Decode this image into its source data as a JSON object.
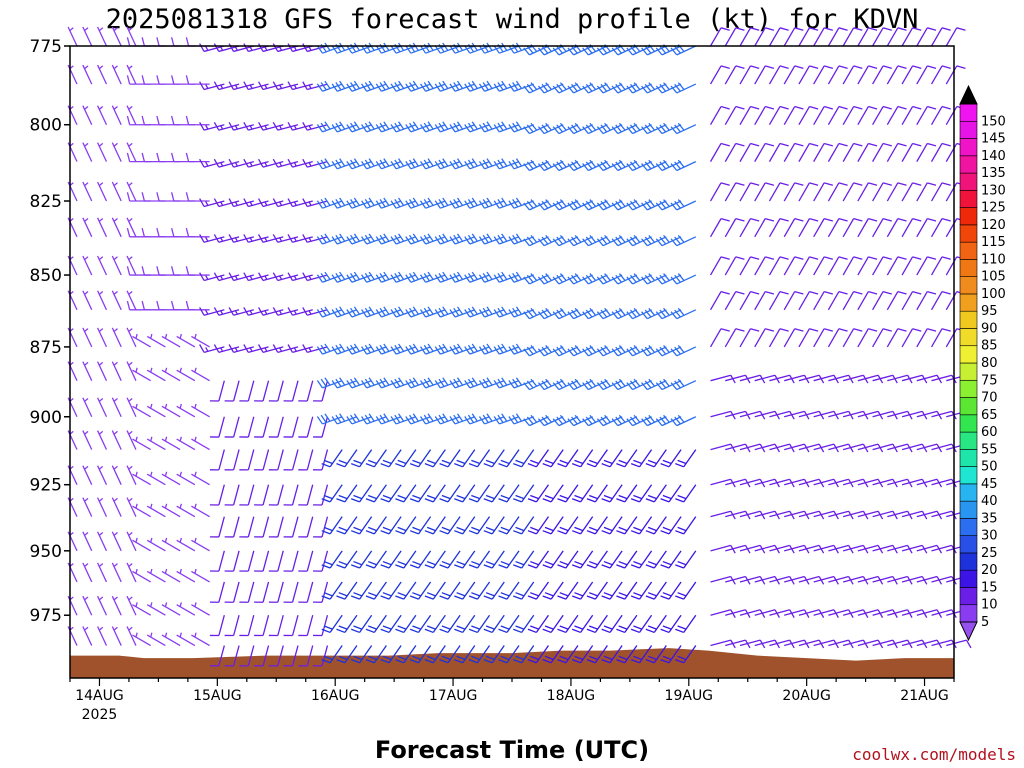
{
  "chart_data": {
    "type": "wind_barb_time_height",
    "title": "2025081318 GFS forecast wind profile (kt) for KDVN",
    "xlabel": "Forecast Time (UTC)",
    "ylabel": "",
    "x_ticks": [
      {
        "label": "14AUG",
        "sublabel": "2025",
        "hour": 6
      },
      {
        "label": "15AUG",
        "sublabel": "",
        "hour": 30
      },
      {
        "label": "16AUG",
        "sublabel": "",
        "hour": 54
      },
      {
        "label": "17AUG",
        "sublabel": "",
        "hour": 78
      },
      {
        "label": "18AUG",
        "sublabel": "",
        "hour": 102
      },
      {
        "label": "19AUG",
        "sublabel": "",
        "hour": 126
      },
      {
        "label": "20AUG",
        "sublabel": "",
        "hour": 150
      },
      {
        "label": "21AUG",
        "sublabel": "",
        "hour": 174
      }
    ],
    "x_range_hours": [
      0,
      180
    ],
    "y_ticks": [
      775,
      800,
      825,
      850,
      875,
      900,
      925,
      950,
      975
    ],
    "y_range_hpa": [
      775,
      1000
    ],
    "y_scale": "log",
    "levels_hpa": [
      775,
      787,
      800,
      812,
      825,
      837,
      850,
      862,
      875,
      887,
      900,
      912,
      925,
      937,
      950,
      962,
      975,
      987
    ],
    "colorbar": {
      "labels": [
        5,
        10,
        15,
        20,
        25,
        30,
        35,
        40,
        45,
        50,
        55,
        60,
        65,
        70,
        75,
        80,
        85,
        90,
        95,
        100,
        105,
        110,
        115,
        120,
        125,
        130,
        135,
        140,
        145,
        150
      ],
      "colors": [
        "#8a3cf0",
        "#6a1ee6",
        "#3c14e6",
        "#1e32dc",
        "#2850e6",
        "#2c6ef0",
        "#2896f0",
        "#28b4f0",
        "#1ee6d2",
        "#1ee6aa",
        "#28e682",
        "#32e650",
        "#5ae632",
        "#8cf032",
        "#c8f032",
        "#f0f032",
        "#f0dc28",
        "#f0c81e",
        "#f0a01e",
        "#f08c1e",
        "#f07814",
        "#f06414",
        "#f0460a",
        "#f0280a",
        "#f0143c",
        "#f0147a",
        "#f014a0",
        "#f014c8",
        "#e614e6",
        "#f014f0"
      ],
      "over_color": "#000000",
      "under_color": "#9650f0"
    },
    "terrain": {
      "color": "#a0522d",
      "pressure_hpa": [
        [
          0,
          991
        ],
        [
          2,
          991
        ],
        [
          10,
          991
        ],
        [
          15,
          992
        ],
        [
          25,
          992
        ],
        [
          40,
          991
        ],
        [
          55,
          991
        ],
        [
          65,
          991
        ],
        [
          75,
          990
        ],
        [
          90,
          990
        ],
        [
          100,
          989
        ],
        [
          110,
          989
        ],
        [
          122,
          988
        ],
        [
          130,
          989
        ],
        [
          140,
          991
        ],
        [
          150,
          992
        ],
        [
          160,
          993
        ],
        [
          170,
          992
        ],
        [
          180,
          992
        ]
      ]
    },
    "wind_regimes": [
      {
        "t_start": 0,
        "t_end": 14,
        "p_top": 775,
        "p_bot": 1000,
        "dir_deg": 335,
        "speed_kt": 6
      },
      {
        "t_start": 14,
        "t_end": 30,
        "p_top": 775,
        "p_bot": 870,
        "dir_deg": 270,
        "speed_kt": 8
      },
      {
        "t_start": 14,
        "t_end": 30,
        "p_top": 870,
        "p_bot": 1000,
        "dir_deg": 300,
        "speed_kt": 7
      },
      {
        "t_start": 30,
        "t_end": 54,
        "p_top": 775,
        "p_bot": 880,
        "dir_deg": 255,
        "speed_kt": 13
      },
      {
        "t_start": 30,
        "t_end": 54,
        "p_top": 880,
        "p_bot": 1000,
        "dir_deg": 195,
        "speed_kt": 10
      },
      {
        "t_start": 54,
        "t_end": 96,
        "p_top": 775,
        "p_bot": 905,
        "dir_deg": 250,
        "speed_kt": 32
      },
      {
        "t_start": 54,
        "t_end": 96,
        "p_top": 905,
        "p_bot": 1000,
        "dir_deg": 215,
        "speed_kt": 22
      },
      {
        "t_start": 96,
        "t_end": 127,
        "p_top": 775,
        "p_bot": 905,
        "dir_deg": 245,
        "speed_kt": 30
      },
      {
        "t_start": 96,
        "t_end": 127,
        "p_top": 905,
        "p_bot": 1000,
        "dir_deg": 215,
        "speed_kt": 18
      },
      {
        "t_start": 127,
        "t_end": 180,
        "p_top": 775,
        "p_bot": 880,
        "dir_deg": 30,
        "speed_kt": 10
      },
      {
        "t_start": 127,
        "t_end": 180,
        "p_top": 880,
        "p_bot": 1000,
        "dir_deg": 75,
        "speed_kt": 12
      }
    ],
    "grid": false,
    "time_step_hours": 3
  },
  "credit": "coolwx.com/models"
}
